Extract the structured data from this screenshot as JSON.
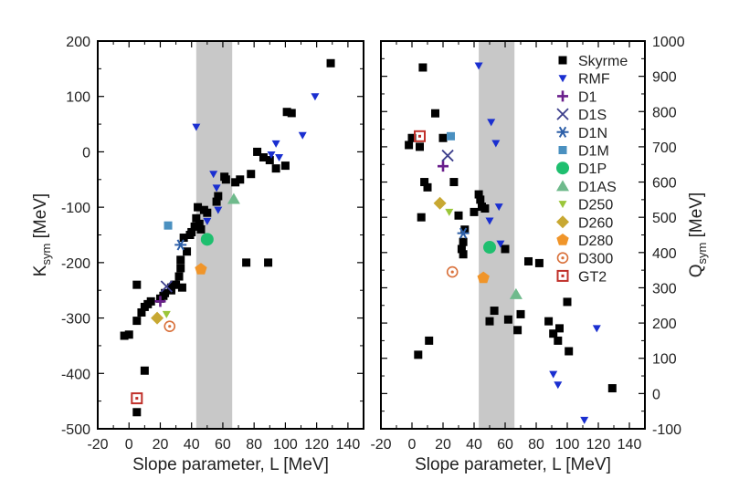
{
  "markers": {
    "Skyrme": {
      "shape": "square",
      "color": "#000000"
    },
    "RMF": {
      "shape": "tri-down",
      "color": "#1a2fd0"
    },
    "D1": {
      "shape": "plus",
      "color": "#6a1f8c"
    },
    "D1S": {
      "shape": "cross",
      "color": "#3d3f8c"
    },
    "D1N": {
      "shape": "asterisk",
      "color": "#2d5fa8"
    },
    "D1M": {
      "shape": "square",
      "color": "#4a90c0"
    },
    "D1P": {
      "shape": "circle",
      "color": "#1fbf6f"
    },
    "D1AS": {
      "shape": "tri-up",
      "color": "#6fba8c"
    },
    "D250": {
      "shape": "tri-down",
      "color": "#9bc63a"
    },
    "D260": {
      "shape": "diamond",
      "color": "#c8a832"
    },
    "D280": {
      "shape": "pentagon",
      "color": "#f0952a"
    },
    "D300": {
      "shape": "circle-dot",
      "color": "#d9703a"
    },
    "GT2": {
      "shape": "square-dot",
      "color": "#c0302a"
    }
  },
  "chart_data": [
    {
      "type": "scatter",
      "xlabel": "Slope parameter, L [MeV]",
      "ylabel": "K",
      "ylabel_sub": "sym",
      "ylabel_unit": " [MeV]",
      "axis_side": "left",
      "xlim": [
        -20,
        150
      ],
      "ylim": [
        -500,
        200
      ],
      "xticks": [
        -20,
        0,
        20,
        40,
        60,
        80,
        100,
        120,
        140
      ],
      "yticks": [
        -500,
        -400,
        -300,
        -200,
        -100,
        0,
        100,
        200
      ],
      "shaded_band": [
        43,
        66
      ],
      "series": [
        {
          "name": "Skyrme",
          "x": [
            129,
            101,
            104,
            82,
            86,
            90,
            100,
            94,
            78,
            71,
            68,
            62,
            61,
            57,
            56,
            48,
            50,
            44,
            43,
            45,
            42,
            46,
            40,
            39,
            35,
            37,
            33,
            33,
            32,
            30,
            34,
            29,
            27,
            27,
            23,
            22,
            20,
            14,
            10,
            12,
            8,
            5,
            5,
            0,
            -3,
            10,
            5,
            75,
            89
          ],
          "y": [
            160,
            72,
            70,
            0,
            -10,
            -15,
            -25,
            -30,
            -40,
            -50,
            -55,
            -50,
            -45,
            -80,
            -90,
            -105,
            -110,
            -100,
            -120,
            -130,
            -135,
            -140,
            -145,
            -150,
            -155,
            -180,
            -195,
            -210,
            -225,
            -240,
            -245,
            -240,
            -245,
            -250,
            -255,
            -260,
            -265,
            -270,
            -280,
            -275,
            -290,
            -305,
            -240,
            -330,
            -332,
            -395,
            -470,
            -200,
            -200
          ]
        },
        {
          "name": "RMF",
          "x": [
            119,
            111,
            94,
            96,
            91,
            54,
            56,
            57,
            50,
            43
          ],
          "y": [
            100,
            30,
            15,
            -10,
            -5,
            -40,
            -65,
            -105,
            -125,
            45
          ]
        },
        {
          "name": "D1",
          "x": [
            20
          ],
          "y": [
            -270
          ]
        },
        {
          "name": "D1S",
          "x": [
            24
          ],
          "y": [
            -243
          ]
        },
        {
          "name": "D1N",
          "x": [
            33
          ],
          "y": [
            -168
          ]
        },
        {
          "name": "D1M",
          "x": [
            25
          ],
          "y": [
            -133
          ]
        },
        {
          "name": "D1P",
          "x": [
            50
          ],
          "y": [
            -158
          ]
        },
        {
          "name": "D1AS",
          "x": [
            67
          ],
          "y": [
            -85
          ]
        },
        {
          "name": "D250",
          "x": [
            24
          ],
          "y": [
            -293
          ]
        },
        {
          "name": "D260",
          "x": [
            18
          ],
          "y": [
            -300
          ]
        },
        {
          "name": "D280",
          "x": [
            46
          ],
          "y": [
            -212
          ]
        },
        {
          "name": "D300",
          "x": [
            26
          ],
          "y": [
            -315
          ]
        },
        {
          "name": "GT2",
          "x": [
            5
          ],
          "y": [
            -445
          ]
        }
      ]
    },
    {
      "type": "scatter",
      "xlabel": "Slope parameter, L [MeV]",
      "ylabel": "Q",
      "ylabel_sub": "sym",
      "ylabel_unit": " [MeV]",
      "axis_side": "right",
      "xlim": [
        -20,
        150
      ],
      "ylim": [
        -100,
        1000
      ],
      "xticks": [
        -20,
        0,
        20,
        40,
        60,
        80,
        100,
        120,
        140
      ],
      "yticks": [
        -100,
        0,
        100,
        200,
        300,
        400,
        500,
        600,
        700,
        800,
        900,
        1000
      ],
      "shaded_band": [
        43,
        66
      ],
      "series": [
        {
          "name": "Skyrme",
          "x": [
            7,
            15,
            0,
            -2,
            5,
            20,
            8,
            10,
            27,
            43,
            44,
            45,
            47,
            40,
            30,
            34,
            33,
            32,
            33,
            60,
            75,
            82,
            100,
            70,
            62,
            88,
            53,
            50,
            68,
            95,
            91,
            94,
            101,
            129,
            6,
            11,
            4
          ],
          "y": [
            925,
            795,
            725,
            705,
            700,
            725,
            600,
            585,
            600,
            565,
            550,
            530,
            525,
            515,
            505,
            465,
            430,
            410,
            395,
            410,
            375,
            370,
            260,
            225,
            210,
            205,
            235,
            205,
            180,
            185,
            170,
            150,
            120,
            15,
            500,
            150,
            110
          ]
        },
        {
          "name": "RMF",
          "x": [
            43,
            51,
            54,
            56,
            57,
            50,
            111,
            119,
            91,
            94
          ],
          "y": [
            930,
            770,
            710,
            530,
            425,
            490,
            -75,
            185,
            55,
            25
          ]
        },
        {
          "name": "D1",
          "x": [
            20
          ],
          "y": [
            645
          ]
        },
        {
          "name": "D1S",
          "x": [
            23
          ],
          "y": [
            675
          ]
        },
        {
          "name": "D1N",
          "x": [
            33
          ],
          "y": [
            455
          ]
        },
        {
          "name": "D1M",
          "x": [
            25
          ],
          "y": [
            730
          ]
        },
        {
          "name": "D1P",
          "x": [
            50
          ],
          "y": [
            415
          ]
        },
        {
          "name": "D1AS",
          "x": [
            67
          ],
          "y": [
            282
          ]
        },
        {
          "name": "D250",
          "x": [
            24
          ],
          "y": [
            515
          ]
        },
        {
          "name": "D260",
          "x": [
            18
          ],
          "y": [
            540
          ]
        },
        {
          "name": "D280",
          "x": [
            46
          ],
          "y": [
            328
          ]
        },
        {
          "name": "D300",
          "x": [
            26
          ],
          "y": [
            345
          ]
        },
        {
          "name": "GT2",
          "x": [
            5
          ],
          "y": [
            730
          ]
        }
      ]
    }
  ],
  "legend": {
    "placement": "right-panel top-right",
    "entries": [
      "Skyrme",
      "RMF",
      "D1",
      "D1S",
      "D1N",
      "D1M",
      "D1P",
      "D1AS",
      "D250",
      "D260",
      "D280",
      "D300",
      "GT2"
    ]
  }
}
